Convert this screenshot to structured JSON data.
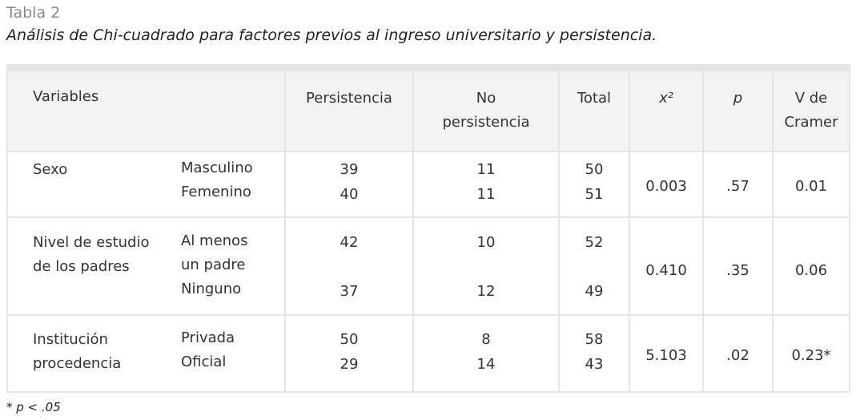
{
  "label": "Tabla 2",
  "caption": "Análisis de Chi-cuadrado para factores previos al ingreso universitario y persistencia.",
  "headers": {
    "variables": "Variables",
    "persistencia": "Persistencia",
    "no_persistencia_1": "No",
    "no_persistencia_2": "persistencia",
    "total": "Total",
    "chi": "x²",
    "p": "p",
    "v1": "V de",
    "v2": "Cramer"
  },
  "rows": [
    {
      "variable": [
        "Sexo"
      ],
      "categories": [
        "Masculino",
        "Femenino"
      ],
      "persistencia": [
        "39",
        "40"
      ],
      "no_persistencia": [
        "11",
        "11"
      ],
      "total": [
        "50",
        "51"
      ],
      "chi": "0.003",
      "p": ".57",
      "v": "0.01"
    },
    {
      "variable": [
        "Nivel de estudio",
        "de los padres"
      ],
      "categories": [
        "Al menos",
        "un padre",
        "Ninguno"
      ],
      "persistencia": [
        "42",
        "37"
      ],
      "no_persistencia": [
        "10",
        "12"
      ],
      "total": [
        "52",
        "49"
      ],
      "chi": "0.410",
      "p": ".35",
      "v": "0.06"
    },
    {
      "variable": [
        "Institución",
        "procedencia"
      ],
      "categories": [
        "Privada",
        "Oficial"
      ],
      "persistencia": [
        "50",
        "29"
      ],
      "no_persistencia": [
        "8",
        "14"
      ],
      "total": [
        "58",
        "43"
      ],
      "chi": "5.103",
      "p": ".02",
      "v": "0.23*"
    }
  ],
  "note": "* p < .05"
}
